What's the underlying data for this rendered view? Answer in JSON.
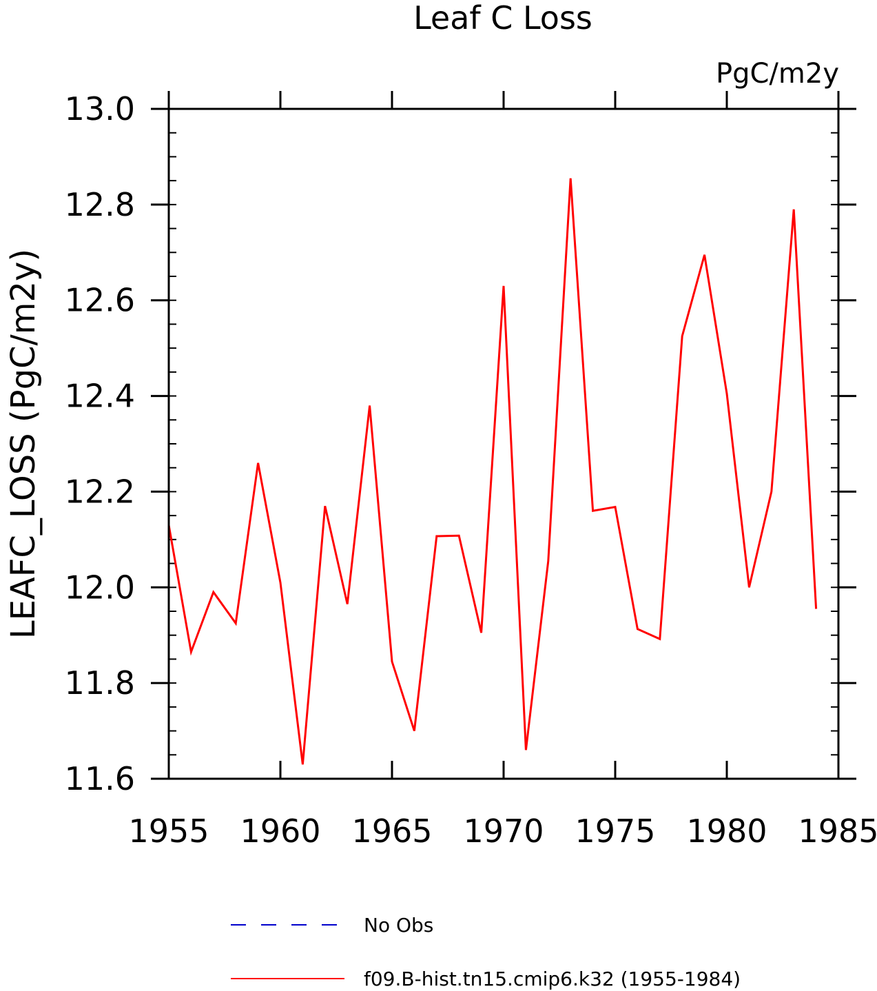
{
  "chart_data": {
    "type": "line",
    "title": "Leaf C Loss",
    "units": "PgC/m2y",
    "ylabel": "LEAFC_LOSS  (PgC/m2y)",
    "xlabel": "",
    "xlim": [
      1955,
      1985
    ],
    "ylim": [
      11.6,
      13.0
    ],
    "x_ticks": [
      "1955",
      "1960",
      "1965",
      "1970",
      "1975",
      "1980",
      "1985"
    ],
    "y_ticks": [
      "11.6",
      "11.8",
      "12.0",
      "12.2",
      "12.4",
      "12.6",
      "12.8",
      "13.0"
    ],
    "grid": false,
    "legend_position": "bottom",
    "legend": [
      {
        "name": "No Obs",
        "color": "#0000cc",
        "style": "dashed"
      },
      {
        "name": "f09.B-hist.tn15.cmip6.k32 (1955-1984)",
        "color": "#ff0000",
        "style": "solid"
      }
    ],
    "series": [
      {
        "name": "f09.B-hist.tn15.cmip6.k32 (1955-1984)",
        "color": "#ff0000",
        "x": [
          1955,
          1956,
          1957,
          1958,
          1959,
          1960,
          1961,
          1962,
          1963,
          1964,
          1965,
          1966,
          1967,
          1968,
          1969,
          1970,
          1971,
          1972,
          1973,
          1974,
          1975,
          1976,
          1977,
          1978,
          1979,
          1980,
          1981,
          1982,
          1983,
          1984
        ],
        "values": [
          12.13,
          11.865,
          11.99,
          11.925,
          12.26,
          12.01,
          11.63,
          12.17,
          11.965,
          12.38,
          11.845,
          11.7,
          12.107,
          12.108,
          11.905,
          12.63,
          11.66,
          12.055,
          12.855,
          12.16,
          12.168,
          11.913,
          11.892,
          12.525,
          12.695,
          12.405,
          12.0,
          12.2,
          12.79,
          11.955
        ]
      }
    ]
  }
}
